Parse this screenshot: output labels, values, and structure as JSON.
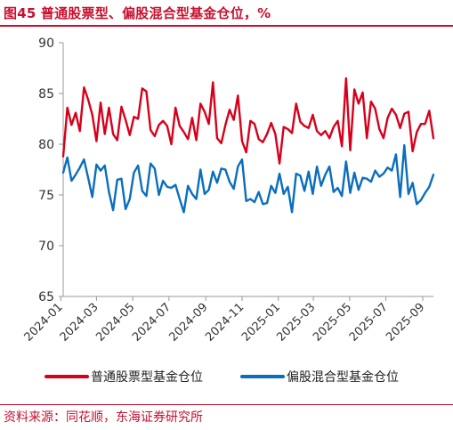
{
  "header": {
    "title": "图45  普通股票型、偏股混合型基金仓位，%"
  },
  "footer": {
    "source": "资料来源：同花顺，东海证券研究所"
  },
  "colors": {
    "accent": "#c8102e",
    "series_1": "#d7001b",
    "series_2": "#0a6ebd"
  },
  "chart_data": {
    "type": "line",
    "title": "",
    "xlabel": "",
    "ylabel": "",
    "ylim": [
      65,
      90
    ],
    "y_ticks": [
      65,
      70,
      75,
      80,
      85,
      90
    ],
    "x_range": [
      "2024-01-05",
      "2025-09-19"
    ],
    "x_tick_labels": [
      "2024-01",
      "2024-03",
      "2024-05",
      "2024-07",
      "2024-09",
      "2024-11",
      "2025-01",
      "2025-03",
      "2025-05",
      "2025-07",
      "2025-09"
    ],
    "grid": false,
    "legend_position": "bottom",
    "series": [
      {
        "name": "普通股票型基金仓位",
        "color": "#d7001b",
        "points": [
          [
            "2024-01-05",
            78.8
          ],
          [
            "2024-01-12",
            83.6
          ],
          [
            "2024-01-19",
            81.9
          ],
          [
            "2024-01-26",
            83.1
          ],
          [
            "2024-02-02",
            81.3
          ],
          [
            "2024-02-09",
            85.6
          ],
          [
            "2024-02-16",
            84.4
          ],
          [
            "2024-02-23",
            82.9
          ],
          [
            "2024-03-01",
            80.3
          ],
          [
            "2024-03-08",
            84.1
          ],
          [
            "2024-03-15",
            81.0
          ],
          [
            "2024-03-22",
            83.6
          ],
          [
            "2024-03-29",
            81.0
          ],
          [
            "2024-04-05",
            80.4
          ],
          [
            "2024-04-12",
            83.7
          ],
          [
            "2024-04-19",
            82.4
          ],
          [
            "2024-04-26",
            80.9
          ],
          [
            "2024-05-03",
            82.7
          ],
          [
            "2024-05-10",
            82.5
          ],
          [
            "2024-05-17",
            85.5
          ],
          [
            "2024-05-24",
            85.2
          ],
          [
            "2024-05-31",
            81.4
          ],
          [
            "2024-06-07",
            80.8
          ],
          [
            "2024-06-14",
            81.9
          ],
          [
            "2024-06-21",
            82.3
          ],
          [
            "2024-06-28",
            81.8
          ],
          [
            "2024-07-05",
            80.0
          ],
          [
            "2024-07-12",
            83.6
          ],
          [
            "2024-07-19",
            81.8
          ],
          [
            "2024-07-26",
            81.2
          ],
          [
            "2024-08-02",
            80.5
          ],
          [
            "2024-08-09",
            82.6
          ],
          [
            "2024-08-16",
            80.4
          ],
          [
            "2024-08-23",
            84.0
          ],
          [
            "2024-08-30",
            83.2
          ],
          [
            "2024-09-06",
            82.0
          ],
          [
            "2024-09-13",
            86.1
          ],
          [
            "2024-09-20",
            80.6
          ],
          [
            "2024-09-27",
            80.1
          ],
          [
            "2024-10-04",
            81.9
          ],
          [
            "2024-10-11",
            83.4
          ],
          [
            "2024-10-18",
            82.4
          ],
          [
            "2024-10-25",
            84.8
          ],
          [
            "2024-11-01",
            80.3
          ],
          [
            "2024-11-08",
            79.2
          ],
          [
            "2024-11-15",
            82.3
          ],
          [
            "2024-11-22",
            82.0
          ],
          [
            "2024-11-29",
            80.5
          ],
          [
            "2024-12-06",
            80.2
          ],
          [
            "2024-12-13",
            81.0
          ],
          [
            "2024-12-20",
            82.1
          ],
          [
            "2024-12-27",
            81.0
          ],
          [
            "2025-01-03",
            78.1
          ],
          [
            "2025-01-10",
            81.7
          ],
          [
            "2025-01-17",
            81.5
          ],
          [
            "2025-01-24",
            81.1
          ],
          [
            "2025-01-31",
            84.0
          ],
          [
            "2025-02-07",
            82.2
          ],
          [
            "2025-02-14",
            81.8
          ],
          [
            "2025-02-21",
            81.6
          ],
          [
            "2025-02-28",
            82.9
          ],
          [
            "2025-03-07",
            81.3
          ],
          [
            "2025-03-14",
            80.9
          ],
          [
            "2025-03-21",
            81.3
          ],
          [
            "2025-03-28",
            80.6
          ],
          [
            "2025-04-04",
            81.7
          ],
          [
            "2025-04-11",
            82.3
          ],
          [
            "2025-04-18",
            79.8
          ],
          [
            "2025-04-25",
            86.5
          ],
          [
            "2025-05-02",
            79.4
          ],
          [
            "2025-05-09",
            85.4
          ],
          [
            "2025-05-16",
            84.0
          ],
          [
            "2025-05-23",
            85.1
          ],
          [
            "2025-05-30",
            80.6
          ],
          [
            "2025-06-06",
            84.2
          ],
          [
            "2025-06-13",
            83.5
          ],
          [
            "2025-06-20",
            81.5
          ],
          [
            "2025-06-27",
            80.6
          ],
          [
            "2025-07-04",
            82.6
          ],
          [
            "2025-07-11",
            83.5
          ],
          [
            "2025-07-18",
            82.9
          ],
          [
            "2025-07-25",
            81.6
          ],
          [
            "2025-08-01",
            83.0
          ],
          [
            "2025-08-08",
            83.2
          ],
          [
            "2025-08-15",
            79.3
          ],
          [
            "2025-08-22",
            81.2
          ],
          [
            "2025-08-29",
            82.0
          ],
          [
            "2025-09-05",
            82.0
          ],
          [
            "2025-09-12",
            83.3
          ],
          [
            "2025-09-19",
            80.6
          ]
        ]
      },
      {
        "name": "偏股混合型基金仓位",
        "color": "#0a6ebd",
        "points": [
          [
            "2024-01-05",
            77.2
          ],
          [
            "2024-01-12",
            78.7
          ],
          [
            "2024-01-19",
            76.4
          ],
          [
            "2024-01-26",
            77.0
          ],
          [
            "2024-02-02",
            77.7
          ],
          [
            "2024-02-09",
            78.5
          ],
          [
            "2024-02-16",
            76.7
          ],
          [
            "2024-02-23",
            74.8
          ],
          [
            "2024-03-01",
            78.0
          ],
          [
            "2024-03-08",
            77.4
          ],
          [
            "2024-03-15",
            77.9
          ],
          [
            "2024-03-22",
            75.3
          ],
          [
            "2024-03-29",
            73.5
          ],
          [
            "2024-04-05",
            76.5
          ],
          [
            "2024-04-12",
            76.6
          ],
          [
            "2024-04-19",
            73.6
          ],
          [
            "2024-04-26",
            74.6
          ],
          [
            "2024-05-03",
            77.2
          ],
          [
            "2024-05-10",
            77.9
          ],
          [
            "2024-05-17",
            75.4
          ],
          [
            "2024-05-24",
            74.9
          ],
          [
            "2024-05-31",
            78.1
          ],
          [
            "2024-06-07",
            77.6
          ],
          [
            "2024-06-14",
            75.0
          ],
          [
            "2024-06-21",
            76.4
          ],
          [
            "2024-06-28",
            75.8
          ],
          [
            "2024-07-05",
            75.7
          ],
          [
            "2024-07-12",
            76.0
          ],
          [
            "2024-07-19",
            74.6
          ],
          [
            "2024-07-26",
            73.3
          ],
          [
            "2024-08-02",
            75.9
          ],
          [
            "2024-08-09",
            75.1
          ],
          [
            "2024-08-16",
            74.6
          ],
          [
            "2024-08-23",
            77.5
          ],
          [
            "2024-08-30",
            75.1
          ],
          [
            "2024-09-06",
            75.5
          ],
          [
            "2024-09-13",
            77.3
          ],
          [
            "2024-09-20",
            76.2
          ],
          [
            "2024-09-27",
            77.6
          ],
          [
            "2024-10-04",
            77.5
          ],
          [
            "2024-10-11",
            76.3
          ],
          [
            "2024-10-18",
            75.6
          ],
          [
            "2024-10-25",
            77.8
          ],
          [
            "2024-11-01",
            78.5
          ],
          [
            "2024-11-08",
            74.4
          ],
          [
            "2024-11-15",
            74.6
          ],
          [
            "2024-11-22",
            74.3
          ],
          [
            "2024-11-29",
            75.3
          ],
          [
            "2024-12-06",
            74.1
          ],
          [
            "2024-12-13",
            74.2
          ],
          [
            "2024-12-20",
            75.9
          ],
          [
            "2024-12-27",
            75.2
          ],
          [
            "2025-01-03",
            77.1
          ],
          [
            "2025-01-10",
            75.1
          ],
          [
            "2025-01-17",
            75.8
          ],
          [
            "2025-01-24",
            73.3
          ],
          [
            "2025-01-31",
            77.1
          ],
          [
            "2025-02-07",
            76.9
          ],
          [
            "2025-02-14",
            75.4
          ],
          [
            "2025-02-21",
            77.3
          ],
          [
            "2025-02-28",
            75.1
          ],
          [
            "2025-03-07",
            77.8
          ],
          [
            "2025-03-14",
            75.9
          ],
          [
            "2025-03-21",
            77.0
          ],
          [
            "2025-03-28",
            77.8
          ],
          [
            "2025-04-04",
            75.3
          ],
          [
            "2025-04-11",
            75.7
          ],
          [
            "2025-04-18",
            74.9
          ],
          [
            "2025-04-25",
            78.3
          ],
          [
            "2025-05-02",
            75.2
          ],
          [
            "2025-05-09",
            77.2
          ],
          [
            "2025-05-16",
            75.5
          ],
          [
            "2025-05-23",
            76.7
          ],
          [
            "2025-05-30",
            76.6
          ],
          [
            "2025-06-06",
            76.3
          ],
          [
            "2025-06-13",
            77.4
          ],
          [
            "2025-06-20",
            76.8
          ],
          [
            "2025-06-27",
            77.1
          ],
          [
            "2025-07-04",
            77.7
          ],
          [
            "2025-07-11",
            77.4
          ],
          [
            "2025-07-18",
            79.0
          ],
          [
            "2025-07-25",
            74.8
          ],
          [
            "2025-08-01",
            79.9
          ],
          [
            "2025-08-08",
            75.1
          ],
          [
            "2025-08-15",
            76.2
          ],
          [
            "2025-08-22",
            74.1
          ],
          [
            "2025-08-29",
            74.5
          ],
          [
            "2025-09-05",
            75.2
          ],
          [
            "2025-09-12",
            75.8
          ],
          [
            "2025-09-19",
            77.0
          ]
        ]
      }
    ]
  }
}
